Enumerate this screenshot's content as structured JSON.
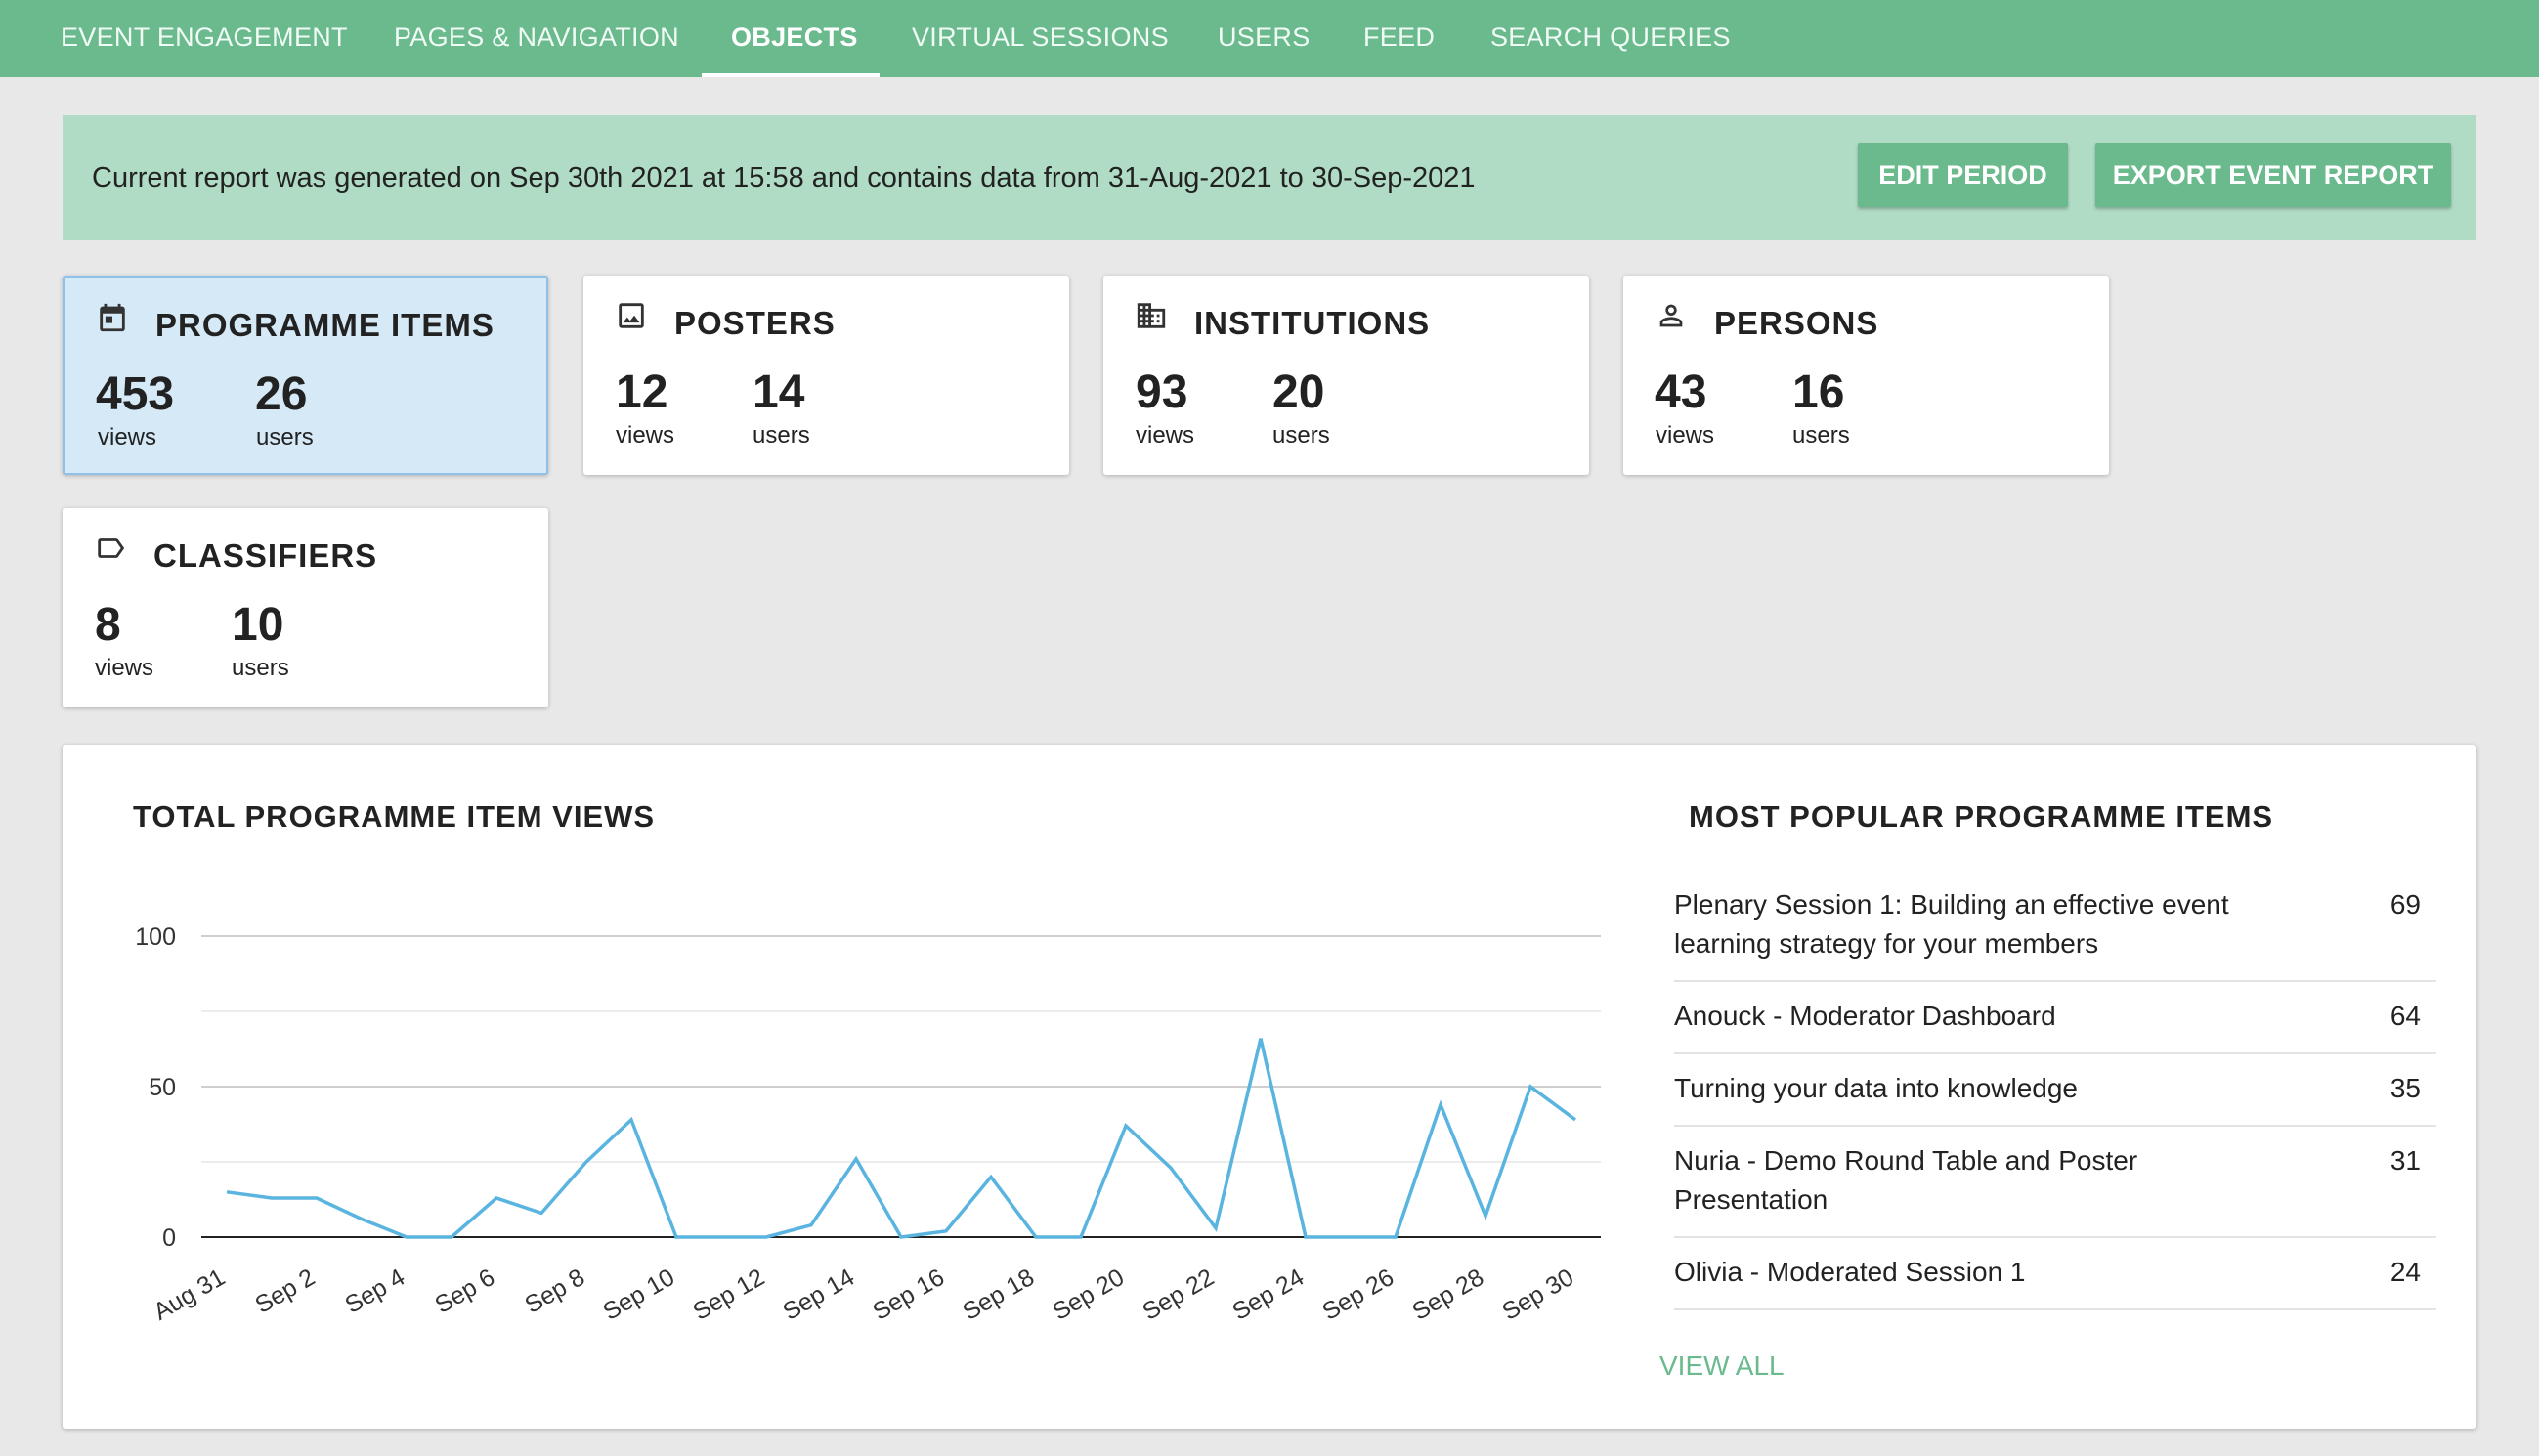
{
  "nav": {
    "tabs": [
      "EVENT ENGAGEMENT",
      "PAGES & NAVIGATION",
      "OBJECTS",
      "VIRTUAL SESSIONS",
      "USERS",
      "FEED",
      "SEARCH QUERIES"
    ],
    "active": "OBJECTS"
  },
  "banner": {
    "text": "Current report was generated on Sep 30th 2021 at 15:58 and contains data from 31-Aug-2021 to 30-Sep-2021",
    "edit_label": "EDIT PERIOD",
    "export_label": "EXPORT EVENT REPORT"
  },
  "cards": [
    {
      "title": "PROGRAMME ITEMS",
      "icon": "calendar-icon",
      "views": "453",
      "users": "26",
      "views_label": "views",
      "users_label": "users",
      "selected": true
    },
    {
      "title": "POSTERS",
      "icon": "image-icon",
      "views": "12",
      "users": "14",
      "views_label": "views",
      "users_label": "users"
    },
    {
      "title": "INSTITUTIONS",
      "icon": "building-icon",
      "views": "93",
      "users": "20",
      "views_label": "views",
      "users_label": "users"
    },
    {
      "title": "PERSONS",
      "icon": "person-icon",
      "views": "43",
      "users": "16",
      "views_label": "views",
      "users_label": "users"
    },
    {
      "title": "CLASSIFIERS",
      "icon": "tag-icon",
      "views": "8",
      "users": "10",
      "views_label": "views",
      "users_label": "users"
    }
  ],
  "chart_title": "TOTAL PROGRAMME ITEM VIEWS",
  "chart_data": {
    "type": "line",
    "title": "TOTAL PROGRAMME ITEM VIEWS",
    "xlabel": "",
    "ylabel": "",
    "ylim": [
      0,
      100
    ],
    "yticks": [
      0,
      50,
      100
    ],
    "x": [
      "Aug 31",
      "Sep 1",
      "Sep 2",
      "Sep 3",
      "Sep 4",
      "Sep 5",
      "Sep 6",
      "Sep 7",
      "Sep 8",
      "Sep 9",
      "Sep 10",
      "Sep 11",
      "Sep 12",
      "Sep 13",
      "Sep 14",
      "Sep 15",
      "Sep 16",
      "Sep 17",
      "Sep 18",
      "Sep 19",
      "Sep 20",
      "Sep 21",
      "Sep 22",
      "Sep 23",
      "Sep 24",
      "Sep 25",
      "Sep 26",
      "Sep 27",
      "Sep 28",
      "Sep 29",
      "Sep 30"
    ],
    "xtick_labels": [
      "Aug 31",
      "Sep 2",
      "Sep 4",
      "Sep 6",
      "Sep 8",
      "Sep 10",
      "Sep 12",
      "Sep 14",
      "Sep 16",
      "Sep 18",
      "Sep 20",
      "Sep 22",
      "Sep 24",
      "Sep 26",
      "Sep 28",
      "Sep 30"
    ],
    "series": [
      {
        "values": [
          15,
          13,
          13,
          6,
          0,
          0,
          13,
          8,
          25,
          39,
          0,
          0,
          0,
          4,
          26,
          0,
          2,
          20,
          0,
          0,
          37,
          23,
          3,
          66,
          0,
          0,
          0,
          44,
          7,
          50,
          39
        ]
      }
    ],
    "grid": true,
    "color": "#5ab4e0"
  },
  "popular": {
    "title": "MOST POPULAR PROGRAMME ITEMS",
    "items": [
      {
        "name": "Plenary Session 1: Building an effective event learning strategy for your members",
        "value": "69"
      },
      {
        "name": "Anouck - Moderator Dashboard",
        "value": "64"
      },
      {
        "name": "Turning your data into knowledge",
        "value": "35"
      },
      {
        "name": "Nuria - Demo Round Table and Poster Presentation",
        "value": "31"
      },
      {
        "name": "Olivia - Moderated Session 1",
        "value": "24"
      }
    ],
    "view_all": "VIEW ALL"
  }
}
